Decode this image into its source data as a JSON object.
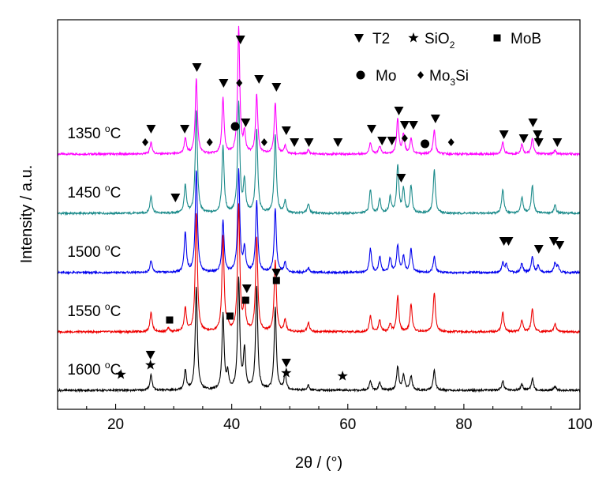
{
  "chart_data": {
    "type": "line",
    "title": "",
    "xlabel": "2θ / (°)",
    "ylabel": "Intensity / a.u.",
    "xlim": [
      10,
      100
    ],
    "xticks": [
      20,
      40,
      60,
      80,
      100
    ],
    "grid": false,
    "legend": {
      "placement": "top-right",
      "entries": [
        {
          "marker": "triangle-down",
          "label": "T2"
        },
        {
          "marker": "star",
          "label": "SiO",
          "subscript": "2"
        },
        {
          "marker": "square",
          "label": "MoB"
        },
        {
          "marker": "circle",
          "label": "Mo"
        },
        {
          "marker": "diamond",
          "label": "Mo",
          "subscript": "3",
          "suffix": "Si"
        }
      ]
    },
    "base_peaks_2theta": [
      26.1,
      32.0,
      33.9,
      38.5,
      41.2,
      42.2,
      44.3,
      47.5,
      49.2,
      53.2,
      63.9,
      65.5,
      67.3,
      68.6,
      69.6,
      70.9,
      74.9,
      86.7,
      90.0,
      91.8,
      95.7
    ],
    "series": [
      {
        "name": "1350 °C",
        "temp_value": "1350",
        "temp_unit": "C",
        "color": "#ff00ff",
        "label_2theta": 11,
        "peaks": [
          [
            26.1,
            0.15
          ],
          [
            32.0,
            0.2
          ],
          [
            33.9,
            0.95
          ],
          [
            38.5,
            0.7
          ],
          [
            41.2,
            1.6
          ],
          [
            42.2,
            0.25
          ],
          [
            44.3,
            0.75
          ],
          [
            47.5,
            0.65
          ],
          [
            49.2,
            0.1
          ],
          [
            53.2,
            0.05
          ],
          [
            63.9,
            0.15
          ],
          [
            65.5,
            0.1
          ],
          [
            68.6,
            0.45
          ],
          [
            69.6,
            0.25
          ],
          [
            70.9,
            0.2
          ],
          [
            74.9,
            0.3
          ],
          [
            86.7,
            0.15
          ],
          [
            90.0,
            0.12
          ],
          [
            91.8,
            0.2
          ],
          [
            95.7,
            0.05
          ]
        ],
        "markers": [
          {
            "type": "diamond",
            "x": 25.1,
            "y": 0.05
          },
          {
            "type": "triangle-down",
            "x": 26.1,
            "y": 0.22
          },
          {
            "type": "triangle-down",
            "x": 31.9,
            "y": 0.22
          },
          {
            "type": "triangle-down",
            "x": 34.0,
            "y": 1.0
          },
          {
            "type": "diamond",
            "x": 36.2,
            "y": 0.05
          },
          {
            "type": "triangle-down",
            "x": 38.6,
            "y": 0.8
          },
          {
            "type": "circle",
            "x": 40.6,
            "y": 0.25
          },
          {
            "type": "diamond",
            "x": 41.3,
            "y": 0.8
          },
          {
            "type": "triangle-down",
            "x": 42.4,
            "y": 0.3
          },
          {
            "type": "triangle-down",
            "x": 41.5,
            "y": 1.35
          },
          {
            "type": "triangle-down",
            "x": 44.7,
            "y": 0.85
          },
          {
            "type": "diamond",
            "x": 45.6,
            "y": 0.05
          },
          {
            "type": "triangle-down",
            "x": 47.7,
            "y": 0.75
          },
          {
            "type": "triangle-down",
            "x": 49.4,
            "y": 0.2
          },
          {
            "type": "triangle-down",
            "x": 50.8,
            "y": 0.05
          },
          {
            "type": "triangle-down",
            "x": 53.3,
            "y": 0.05
          },
          {
            "type": "triangle-down",
            "x": 58.3,
            "y": 0.05
          },
          {
            "type": "triangle-down",
            "x": 64.1,
            "y": 0.22
          },
          {
            "type": "triangle-down",
            "x": 65.9,
            "y": 0.07
          },
          {
            "type": "triangle-down",
            "x": 67.6,
            "y": 0.07
          },
          {
            "type": "triangle-down",
            "x": 68.8,
            "y": 0.45
          },
          {
            "type": "triangle-down",
            "x": 69.8,
            "y": 0.27
          },
          {
            "type": "diamond",
            "x": 69.8,
            "y": 0.1
          },
          {
            "type": "triangle-down",
            "x": 71.3,
            "y": 0.27
          },
          {
            "type": "circle",
            "x": 73.3,
            "y": 0.03
          },
          {
            "type": "triangle-down",
            "x": 75.1,
            "y": 0.35
          },
          {
            "type": "diamond",
            "x": 77.8,
            "y": 0.05
          },
          {
            "type": "triangle-down",
            "x": 86.9,
            "y": 0.15
          },
          {
            "type": "triangle-down",
            "x": 90.3,
            "y": 0.1
          },
          {
            "type": "triangle-down",
            "x": 91.9,
            "y": 0.3
          },
          {
            "type": "triangle-down",
            "x": 92.7,
            "y": 0.15
          },
          {
            "type": "diamond",
            "x": 92.7,
            "y": 0.08
          },
          {
            "type": "triangle-down",
            "x": 92.9,
            "y": 0.05
          },
          {
            "type": "triangle-down",
            "x": 96.1,
            "y": 0.05
          }
        ]
      },
      {
        "name": "1450 °C",
        "temp_value": "1450",
        "temp_unit": "C",
        "color": "#1a8a8a",
        "label_2theta": 11,
        "peaks": [
          [
            26.1,
            0.22
          ],
          [
            32.0,
            0.35
          ],
          [
            33.9,
            1.3
          ],
          [
            38.5,
            0.85
          ],
          [
            41.2,
            1.4
          ],
          [
            42.2,
            0.4
          ],
          [
            44.3,
            1.05
          ],
          [
            47.5,
            1.0
          ],
          [
            49.2,
            0.15
          ],
          [
            53.2,
            0.12
          ],
          [
            63.9,
            0.3
          ],
          [
            65.5,
            0.18
          ],
          [
            67.3,
            0.2
          ],
          [
            68.6,
            0.6
          ],
          [
            69.6,
            0.3
          ],
          [
            70.9,
            0.35
          ],
          [
            74.9,
            0.55
          ],
          [
            86.7,
            0.3
          ],
          [
            90.0,
            0.2
          ],
          [
            91.8,
            0.35
          ],
          [
            95.7,
            0.1
          ]
        ],
        "markers": [
          {
            "type": "triangle-down",
            "x": 30.3,
            "y": 0.1
          },
          {
            "type": "triangle-down",
            "x": 69.2,
            "y": 0.35
          }
        ]
      },
      {
        "name": "1500 °C",
        "temp_value": "1500",
        "temp_unit": "C",
        "color": "#0000ee",
        "label_2theta": 11,
        "peaks": [
          [
            26.1,
            0.15
          ],
          [
            32.0,
            0.5
          ],
          [
            33.9,
            1.3
          ],
          [
            38.5,
            0.65
          ],
          [
            41.2,
            1.3
          ],
          [
            42.2,
            0.3
          ],
          [
            44.3,
            0.9
          ],
          [
            47.5,
            0.8
          ],
          [
            49.2,
            0.12
          ],
          [
            53.2,
            0.06
          ],
          [
            63.9,
            0.3
          ],
          [
            65.5,
            0.2
          ],
          [
            67.3,
            0.18
          ],
          [
            68.6,
            0.35
          ],
          [
            69.6,
            0.2
          ],
          [
            70.9,
            0.3
          ],
          [
            74.9,
            0.2
          ],
          [
            86.7,
            0.12
          ],
          [
            87.3,
            0.1
          ],
          [
            90.0,
            0.12
          ],
          [
            91.8,
            0.2
          ],
          [
            92.8,
            0.08
          ],
          [
            95.7,
            0.12
          ],
          [
            96.2,
            0.08
          ]
        ],
        "markers": [
          {
            "type": "triangle-down",
            "x": 86.9,
            "y": 0.3
          },
          {
            "type": "triangle-down",
            "x": 87.7,
            "y": 0.3
          },
          {
            "type": "triangle-down",
            "x": 92.9,
            "y": 0.2
          },
          {
            "type": "triangle-down",
            "x": 95.5,
            "y": 0.3
          },
          {
            "type": "triangle-down",
            "x": 96.5,
            "y": 0.25
          }
        ]
      },
      {
        "name": "1550 °C",
        "temp_value": "1550",
        "temp_unit": "C",
        "color": "#ee0000",
        "label_2theta": 11,
        "peaks": [
          [
            26.1,
            0.25
          ],
          [
            29.1,
            0.04
          ],
          [
            32.0,
            0.3
          ],
          [
            33.9,
            1.5
          ],
          [
            38.5,
            1.2
          ],
          [
            39.3,
            0.1
          ],
          [
            41.2,
            1.6
          ],
          [
            42.2,
            0.35
          ],
          [
            44.3,
            1.2
          ],
          [
            47.5,
            0.9
          ],
          [
            49.2,
            0.15
          ],
          [
            53.2,
            0.12
          ],
          [
            63.9,
            0.2
          ],
          [
            65.5,
            0.15
          ],
          [
            67.3,
            0.1
          ],
          [
            68.6,
            0.45
          ],
          [
            70.9,
            0.35
          ],
          [
            74.9,
            0.5
          ],
          [
            86.7,
            0.25
          ],
          [
            90.0,
            0.15
          ],
          [
            91.8,
            0.3
          ],
          [
            95.7,
            0.1
          ]
        ],
        "markers": [
          {
            "type": "square",
            "x": 29.3,
            "y": 0.05
          },
          {
            "type": "square",
            "x": 39.7,
            "y": 0.1
          },
          {
            "type": "square",
            "x": 42.4,
            "y": 0.3
          },
          {
            "type": "triangle-down",
            "x": 42.6,
            "y": 0.45
          },
          {
            "type": "square",
            "x": 47.7,
            "y": 0.55
          },
          {
            "type": "triangle-down",
            "x": 47.7,
            "y": 0.65
          }
        ]
      },
      {
        "name": "1600 °C",
        "temp_value": "1600",
        "temp_unit": "C",
        "color": "#000000",
        "label_2theta": 11,
        "peaks": [
          [
            26.1,
            0.2
          ],
          [
            32.0,
            0.25
          ],
          [
            33.9,
            1.3
          ],
          [
            38.5,
            0.95
          ],
          [
            39.3,
            0.2
          ],
          [
            41.2,
            1.4
          ],
          [
            42.2,
            0.5
          ],
          [
            44.3,
            1.3
          ],
          [
            47.5,
            1.05
          ],
          [
            49.2,
            0.2
          ],
          [
            53.2,
            0.06
          ],
          [
            63.9,
            0.12
          ],
          [
            65.5,
            0.1
          ],
          [
            68.6,
            0.3
          ],
          [
            69.6,
            0.2
          ],
          [
            70.9,
            0.18
          ],
          [
            74.9,
            0.25
          ],
          [
            86.7,
            0.12
          ],
          [
            90.0,
            0.08
          ],
          [
            91.8,
            0.15
          ],
          [
            95.7,
            0.05
          ]
        ],
        "markers": [
          {
            "type": "star",
            "x": 20.9,
            "y": 0.1
          },
          {
            "type": "triangle-down",
            "x": 26.0,
            "y": 0.35
          },
          {
            "type": "star",
            "x": 26.0,
            "y": 0.22
          },
          {
            "type": "triangle-down",
            "x": 49.4,
            "y": 0.25
          },
          {
            "type": "star",
            "x": 49.4,
            "y": 0.12
          },
          {
            "type": "star",
            "x": 59.1,
            "y": 0.08
          }
        ]
      }
    ]
  }
}
